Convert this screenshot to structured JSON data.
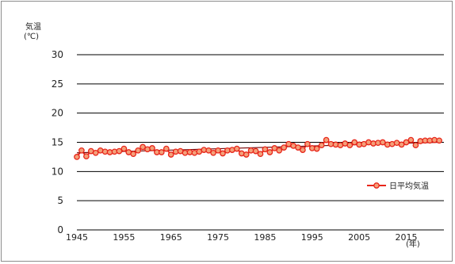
{
  "chart_data": {
    "type": "line",
    "title": "",
    "ylabel": "気温",
    "yunit": "(℃)",
    "xlabel_unit": "(年)",
    "ylim": [
      0,
      30
    ],
    "y_ticks": [
      0,
      5,
      10,
      15,
      20,
      25,
      30
    ],
    "xlim": [
      1945,
      2023
    ],
    "x_ticks": [
      1945,
      1955,
      1965,
      1975,
      1985,
      1995,
      2005,
      2015
    ],
    "grid": "horizontal",
    "legend_position": "right",
    "colors": {
      "series": "#e8261a",
      "marker_fill": "#f4a07a",
      "trend": "#7a0a0a",
      "grid": "#000000"
    },
    "series": [
      {
        "name": "日平均気温",
        "x": [
          1945,
          1946,
          1947,
          1948,
          1949,
          1950,
          1951,
          1952,
          1953,
          1954,
          1955,
          1956,
          1957,
          1958,
          1959,
          1960,
          1961,
          1962,
          1963,
          1964,
          1965,
          1966,
          1967,
          1968,
          1969,
          1970,
          1971,
          1972,
          1973,
          1974,
          1975,
          1976,
          1977,
          1978,
          1979,
          1980,
          1981,
          1982,
          1983,
          1984,
          1985,
          1986,
          1987,
          1988,
          1989,
          1990,
          1991,
          1992,
          1993,
          1994,
          1995,
          1996,
          1997,
          1998,
          1999,
          2000,
          2001,
          2002,
          2003,
          2004,
          2005,
          2006,
          2007,
          2008,
          2009,
          2010,
          2011,
          2012,
          2013,
          2014,
          2015,
          2016,
          2017,
          2018,
          2019,
          2020,
          2021,
          2022
        ],
        "values": [
          12.5,
          13.6,
          12.6,
          13.5,
          13.2,
          13.6,
          13.4,
          13.3,
          13.4,
          13.5,
          13.9,
          13.3,
          13.0,
          13.6,
          14.2,
          13.8,
          14.0,
          13.3,
          13.3,
          13.9,
          12.9,
          13.4,
          13.5,
          13.2,
          13.3,
          13.2,
          13.4,
          13.7,
          13.6,
          13.2,
          13.6,
          13.1,
          13.6,
          13.7,
          13.9,
          13.1,
          12.9,
          13.6,
          13.5,
          13.0,
          13.8,
          13.3,
          14.0,
          13.6,
          14.1,
          14.7,
          14.4,
          14.1,
          13.7,
          14.7,
          14.0,
          13.9,
          14.5,
          15.4,
          14.7,
          14.6,
          14.5,
          14.8,
          14.5,
          15.0,
          14.6,
          14.7,
          15.0,
          14.8,
          14.9,
          15.0,
          14.6,
          14.7,
          14.9,
          14.6,
          15.0,
          15.4,
          14.5,
          15.2,
          15.3,
          15.3,
          15.4,
          15.3
        ]
      }
    ],
    "trend": {
      "start": 13.2,
      "end": 15.0
    }
  }
}
